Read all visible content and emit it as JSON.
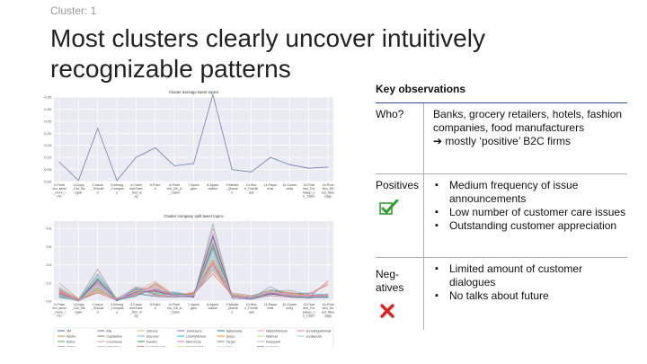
{
  "header": {
    "cluster_label": "Cluster: 1",
    "title": "Most clusters clearly uncover intuitively recognizable patterns"
  },
  "observations": {
    "title": "Key observations",
    "rows": [
      {
        "label": "Who?",
        "lines": [
          "Banks, grocery retailers, hotels, fashion companies, food manufacturers",
          "➔ mostly ‘positive’ B2C firms"
        ]
      },
      {
        "label": "Positives",
        "icon": "check-icon",
        "bullets": [
          "Medium frequency of issue announcements",
          "Low number of customer care issues",
          "Outstanding customer appreciation"
        ]
      },
      {
        "label": "Neg-\natives",
        "icon": "cross-icon",
        "bullets": [
          "Limited amount of customer dialogues",
          "No talks about future"
        ]
      }
    ]
  },
  "colors": {
    "accent_rule": "#2f5597",
    "check": "#2e9e2e",
    "cross": "#e02020",
    "avg_line": "#6b7fb3"
  },
  "chart_data": [
    {
      "type": "line",
      "title": "Cluster average tweet topics",
      "categories": [
        "0-Probl\nem_send\n_more_i\nnfo",
        "1-Enjoy\n_Our_Ba\nrgain",
        "2-Issue\n_Should\nd",
        "3-Wrong\n_Compan\ny",
        "4-Custo\nmerCare\n_first_m\nsg",
        "5-Futur\ne",
        "6-Probl\nem_Dir_&\n_Claim",
        "7-Apolo\ngies",
        "8-Appre\nciation",
        "9-Media\n_Querie\ns",
        "10-Stor\ne_Feedb\nack",
        "11-Paym\nents",
        "12-Comm\nunity",
        "13-Prob\nlem_Fol\nlowup_o\nn_Claim",
        "14-Prob\nlem_Dir\nect_Mes\nsage"
      ],
      "yticks": [
        "0.00",
        "0.05",
        "0.10",
        "0.15",
        "0.20",
        "0.25",
        "0.30",
        "0.35"
      ],
      "ylim": [
        0,
        0.35
      ],
      "grid": true,
      "series": [
        {
          "values": [
            0.08,
            0.005,
            0.22,
            0.005,
            0.1,
            0.14,
            0.065,
            0.075,
            0.36,
            0.05,
            0.04,
            0.1,
            0.07,
            0.055,
            0.06
          ]
        }
      ]
    },
    {
      "type": "line",
      "title": "Cluster company split tweet topics",
      "categories": [
        "0-Probl\nem_send\n_more_i\nnfo",
        "1-Enjoy\n_Our_Ba\nrgain",
        "2-Issue\n_Should\nd",
        "3-Wrong\n_Compan\ny",
        "4-Custo\nmerCare\n_first_m\nsg",
        "5-Futur\ne",
        "6-Probl\nem_Dir_&\n_Claim",
        "7-Apolo\ngies",
        "8-Appre\nciation",
        "9-Media\n_Querie\ns",
        "10-Stor\ne_Feedb\nack",
        "11-Paym\nents",
        "12-Comm\nunity",
        "13-Prob\nlem_Fol\nlowup_o\nn_Claim",
        "14-Prob\nlem_Dir\nect_Mes\nsage"
      ],
      "yticks": [
        "0.0",
        "0.2",
        "0.4",
        "0.6",
        "0.8"
      ],
      "ylim": [
        0,
        0.88
      ],
      "grid": true,
      "legend_position": "bottom",
      "series": [
        {
          "name": "3M",
          "color": "#4c72b0",
          "values": [
            0.1,
            0.01,
            0.3,
            0.02,
            0.08,
            0.05,
            0.04,
            0.05,
            0.62,
            0.06,
            0.04,
            0.08,
            0.06,
            0.05,
            0.04
          ]
        },
        {
          "name": "Adobe",
          "color": "#dd8452",
          "values": [
            0.15,
            0.02,
            0.2,
            0.01,
            0.1,
            0.22,
            0.06,
            0.1,
            0.4,
            0.04,
            0.03,
            0.1,
            0.1,
            0.06,
            0.05
          ]
        },
        {
          "name": "Aetna",
          "color": "#55a868",
          "values": [
            0.06,
            0.0,
            0.25,
            0.03,
            0.15,
            0.1,
            0.08,
            0.04,
            0.85,
            0.05,
            0.02,
            0.06,
            0.04,
            0.03,
            0.06
          ]
        },
        {
          "name": "Airbnb",
          "color": "#c44e52",
          "values": [
            0.12,
            0.01,
            0.18,
            0.02,
            0.06,
            0.14,
            0.07,
            0.08,
            0.3,
            0.07,
            0.05,
            0.12,
            0.08,
            0.08,
            0.18
          ]
        },
        {
          "name": "Ally",
          "color": "#8172b3",
          "values": [
            0.08,
            0.0,
            0.15,
            0.0,
            0.12,
            0.08,
            0.1,
            0.06,
            0.55,
            0.04,
            0.03,
            0.16,
            0.05,
            0.04,
            0.05
          ]
        },
        {
          "name": "CapitalOne",
          "color": "#937860",
          "values": [
            0.2,
            0.02,
            0.35,
            0.01,
            0.05,
            0.2,
            0.05,
            0.07,
            0.45,
            0.06,
            0.04,
            0.1,
            0.07,
            0.05,
            0.07
          ]
        },
        {
          "name": "Commerce",
          "color": "#da8bc3",
          "values": [
            0.05,
            0.01,
            0.22,
            0.02,
            0.16,
            0.12,
            0.06,
            0.05,
            0.75,
            0.03,
            0.02,
            0.07,
            0.06,
            0.04,
            0.04
          ]
        },
        {
          "name": "CRHorton",
          "color": "#8c8c8c",
          "values": [
            0.07,
            0.0,
            0.1,
            0.03,
            0.09,
            0.06,
            0.04,
            0.08,
            0.35,
            0.09,
            0.06,
            0.11,
            0.12,
            0.07,
            0.06
          ]
        },
        {
          "name": "Citizens",
          "color": "#ccb974",
          "values": [
            0.09,
            0.01,
            0.26,
            0.02,
            0.11,
            0.16,
            0.05,
            0.06,
            0.68,
            0.05,
            0.03,
            0.09,
            0.05,
            0.05,
            0.05
          ]
        },
        {
          "name": "Discover",
          "color": "#64b5cd",
          "values": [
            0.13,
            0.0,
            0.12,
            0.01,
            0.07,
            0.18,
            0.06,
            0.05,
            0.5,
            0.04,
            0.05,
            0.13,
            0.09,
            0.06,
            0.08
          ]
        },
        {
          "name": "Domino",
          "color": "#2ca02c",
          "values": [
            0.04,
            0.01,
            0.14,
            0.02,
            0.1,
            0.09,
            0.08,
            0.07,
            0.58,
            0.06,
            0.03,
            0.08,
            0.07,
            0.05,
            0.04
          ]
        },
        {
          "name": "HormelFoods",
          "color": "#d62728",
          "values": [
            0.11,
            0.02,
            0.09,
            0.01,
            0.13,
            0.07,
            0.05,
            0.09,
            0.42,
            0.05,
            0.04,
            0.09,
            0.06,
            0.04,
            0.22
          ]
        },
        {
          "name": "JohnDeere",
          "color": "#9467bd",
          "values": [
            0.06,
            0.0,
            0.19,
            0.03,
            0.08,
            0.11,
            0.07,
            0.04,
            0.64,
            0.03,
            0.02,
            0.1,
            0.05,
            0.06,
            0.05
          ]
        },
        {
          "name": "LibertyMutual",
          "color": "#17becf",
          "values": [
            0.14,
            0.01,
            0.28,
            0.01,
            0.06,
            0.13,
            0.09,
            0.06,
            0.38,
            0.07,
            0.05,
            0.07,
            0.08,
            0.09,
            0.06
          ]
        },
        {
          "name": "MetroCorp",
          "color": "#e377c2",
          "values": [
            0.08,
            0.0,
            0.16,
            0.02,
            0.12,
            0.15,
            0.06,
            0.05,
            0.8,
            0.04,
            0.03,
            0.06,
            0.04,
            0.04,
            0.05
          ]
        },
        {
          "name": "MurphyUSA",
          "color": "#bcbd22",
          "values": [
            0.1,
            0.01,
            0.11,
            0.02,
            0.09,
            0.1,
            0.05,
            0.08,
            0.47,
            0.06,
            0.04,
            0.12,
            0.06,
            0.05,
            0.06
          ]
        },
        {
          "name": "Nationwide",
          "color": "#1f77b4",
          "values": [
            0.05,
            0.0,
            0.24,
            0.01,
            0.14,
            0.08,
            0.07,
            0.06,
            0.7,
            0.05,
            0.02,
            0.08,
            0.05,
            0.04,
            0.04
          ]
        },
        {
          "name": "Sysco",
          "color": "#ff7f0e",
          "values": [
            0.12,
            0.02,
            0.13,
            0.03,
            0.07,
            0.19,
            0.06,
            0.07,
            0.33,
            0.08,
            0.05,
            0.1,
            0.09,
            0.06,
            0.07
          ]
        },
        {
          "name": "Target",
          "color": "#7f7f7f",
          "values": [
            0.09,
            0.01,
            0.21,
            0.01,
            0.1,
            0.12,
            0.08,
            0.05,
            0.6,
            0.04,
            0.04,
            0.09,
            0.05,
            0.05,
            0.05
          ]
        },
        {
          "name": "Visa",
          "color": "#a6cee3",
          "values": [
            0.07,
            0.0,
            0.17,
            0.02,
            0.11,
            0.09,
            0.05,
            0.06,
            0.52,
            0.05,
            0.03,
            0.11,
            0.07,
            0.04,
            0.06
          ]
        },
        {
          "name": "WaldorfAstoria",
          "color": "#fb9a99",
          "values": [
            0.11,
            0.01,
            0.2,
            0.02,
            0.08,
            0.17,
            0.07,
            0.07,
            0.44,
            0.06,
            0.04,
            0.08,
            0.06,
            0.07,
            0.2
          ]
        },
        {
          "name": "Walmart",
          "color": "#b2df8a",
          "values": [
            0.06,
            0.0,
            0.15,
            0.01,
            0.12,
            0.1,
            0.06,
            0.05,
            0.66,
            0.04,
            0.03,
            0.07,
            0.05,
            0.05,
            0.05
          ]
        },
        {
          "name": "honeywell",
          "color": "#cab2d6",
          "values": [
            0.13,
            0.01,
            0.18,
            0.02,
            0.09,
            0.14,
            0.07,
            0.06,
            0.36,
            0.07,
            0.05,
            0.1,
            0.08,
            0.05,
            0.06
          ]
        },
        {
          "name": "keybank",
          "color": "#6a3d9a",
          "values": [
            0.08,
            0.0,
            0.23,
            0.01,
            0.1,
            0.11,
            0.06,
            0.05,
            0.72,
            0.05,
            0.03,
            0.08,
            0.05,
            0.04,
            0.05
          ]
        },
        {
          "name": "knowlingwithimail",
          "color": "#ff69b4",
          "values": [
            0.1,
            0.01,
            0.12,
            0.02,
            0.07,
            0.13,
            0.05,
            0.07,
            0.4,
            0.06,
            0.04,
            0.09,
            0.07,
            0.06,
            0.07
          ]
        },
        {
          "name": "prudiyoods",
          "color": "#9fc5e8",
          "values": [
            0.07,
            0.0,
            0.19,
            0.02,
            0.11,
            0.08,
            0.06,
            0.06,
            0.56,
            0.05,
            0.03,
            0.1,
            0.06,
            0.05,
            0.05
          ]
        }
      ]
    }
  ]
}
